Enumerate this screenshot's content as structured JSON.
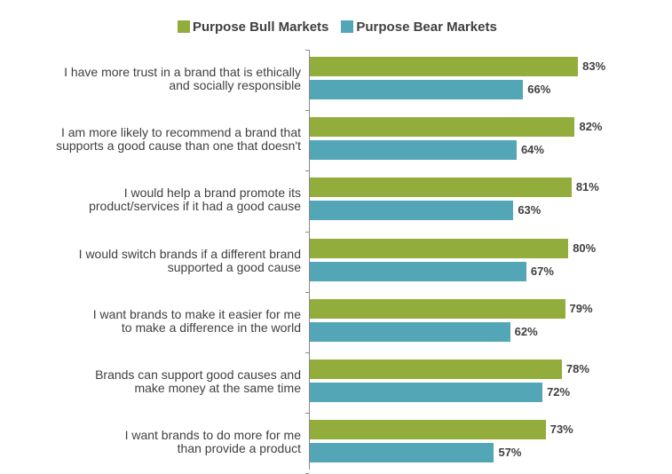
{
  "legend": {
    "series": [
      {
        "name": "Purpose Bull Markets",
        "color": "#93ad3c"
      },
      {
        "name": "Purpose Bear Markets",
        "color": "#53a6b6"
      }
    ]
  },
  "categories": [
    {
      "line1": "I have more trust in a brand that is ethically",
      "line2": "and socially responsible",
      "bull": "83%",
      "bear": "66%"
    },
    {
      "line1": "I am more likely to recommend a brand that",
      "line2": "supports a good cause than one that doesn't",
      "bull": "82%",
      "bear": "64%"
    },
    {
      "line1": "I would help a brand promote its",
      "line2": "product/services if it had a good cause",
      "bull": "81%",
      "bear": "63%"
    },
    {
      "line1": "I would switch brands if a different brand",
      "line2": "supported a good cause",
      "bull": "80%",
      "bear": "67%"
    },
    {
      "line1": "I want brands to make it easier for me",
      "line2": "to make a difference in the world",
      "bull": "79%",
      "bear": "62%"
    },
    {
      "line1": "Brands can support good causes and",
      "line2": "make money at the same time",
      "bull": "78%",
      "bear": "72%"
    },
    {
      "line1": "I want brands to do more for me",
      "line2": "than provide a product",
      "bull": "73%",
      "bear": "57%"
    }
  ],
  "chart_data": {
    "type": "bar",
    "orientation": "horizontal",
    "title": "",
    "xlabel": "",
    "ylabel": "",
    "categories": [
      "I have more trust in a brand that is ethically and socially responsible",
      "I am more likely to recommend a brand that supports a good cause than one that doesn't",
      "I would help a brand promote its product/services if it had a good cause",
      "I would switch brands if a different brand supported a good cause",
      "I want brands to make it easier for me to make a difference in the world",
      "Brands can support good causes and make money at the same time",
      "I want brands to do more for me than provide a product"
    ],
    "series": [
      {
        "name": "Purpose Bull Markets",
        "color": "#93ad3c",
        "values": [
          83,
          82,
          81,
          80,
          79,
          78,
          73
        ]
      },
      {
        "name": "Purpose Bear Markets",
        "color": "#53a6b6",
        "values": [
          66,
          64,
          63,
          67,
          62,
          72,
          57
        ]
      }
    ],
    "value_format": "percent",
    "xlim": [
      0,
      100
    ],
    "grid": false,
    "legend_position": "top",
    "data_labels": true
  }
}
